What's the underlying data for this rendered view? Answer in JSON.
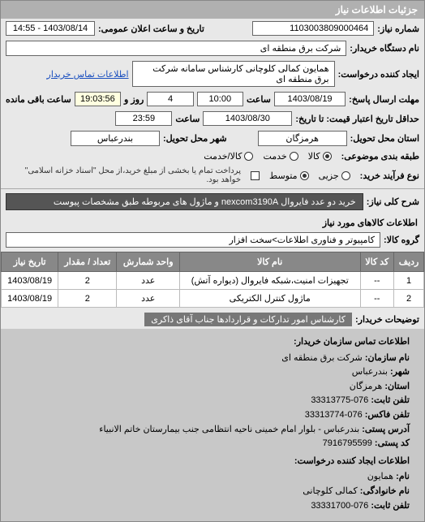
{
  "panel": {
    "title": "جزئیات اطلاعات نیاز"
  },
  "header": {
    "need_number_label": "شماره نیاز:",
    "need_number": "1103003809000464",
    "datetime_label": "تاریخ و ساعت اعلان عمومی:",
    "datetime": "1403/08/14 - 14:55",
    "buyer_org_label": "نام دستگاه خریدار:",
    "buyer_org": "شرکت برق منطقه ای",
    "request_creator_label": "ایجاد کننده درخواست:",
    "request_creator": "همایون کمالی کلوچانی کارشناس سامانه شرکت برق منطقه ای",
    "contact_link": "اطلاعات تماس خریدار"
  },
  "deadlines": {
    "send_deadline_label": "مهلت ارسال پاسخ:",
    "send_from_label": "تا تاریخ:",
    "send_date": "1403/08/19",
    "time_label": "ساعت",
    "send_time": "10:00",
    "days_label": "روز و",
    "days": "4",
    "remaining_time": "19:03:56",
    "remaining_label": "ساعت باقی مانده",
    "price_validity_label": "حداقل تاریخ اعتبار قیمت: تا تاریخ:",
    "price_date": "1403/08/30",
    "price_time": "23:59"
  },
  "location": {
    "province_label": "استان محل تحویل:",
    "province": "هرمزگان",
    "city_label": "شهر محل تحویل:",
    "city": "بندرعباس"
  },
  "subject_type": {
    "label": "طبقه بندی موضوعی:",
    "opt_goods": "کالا",
    "opt_service": "خدمت",
    "opt_goods_service": "کالا/خدمت"
  },
  "purchase_type": {
    "label": "نوع فرآیند خرید:",
    "opt_small": "جزیی",
    "opt_medium": "متوسط",
    "note": "پرداخت تمام یا بخشی از مبلغ خرید،از محل \"اسناد خزانه اسلامی\" خواهد بود.",
    "checkbox_label": ""
  },
  "description": {
    "label": "شرح کلی نیاز:",
    "text": "خرید دو عدد فایروال nexcom3190A و ماژول های مربوطه طبق مشخصات پیوست"
  },
  "goods_section": {
    "title": "اطلاعات کالاهای مورد نیاز",
    "group_label": "گروه کالا:",
    "group": "کامپیوتر و فناوری اطلاعات>سخت افزار"
  },
  "table": {
    "columns": [
      "ردیف",
      "کد کالا",
      "نام کالا",
      "واحد شمارش",
      "تعداد / مقدار",
      "تاریخ نیاز"
    ],
    "rows": [
      [
        "1",
        "--",
        "تجهیزات امنیت،شبکه فایروال (دیواره آتش)",
        "عدد",
        "2",
        "1403/08/19"
      ],
      [
        "2",
        "--",
        "ماژول کنترل الکتریکی",
        "عدد",
        "2",
        "1403/08/19"
      ]
    ]
  },
  "buyer_note": {
    "label": "توضیحات خریدار:",
    "text": "کارشناس امور تدارکات و قراردادها جناب آقای ذاکری"
  },
  "contact": {
    "title": "اطلاعات تماس سازمان خریدار:",
    "org_label": "نام سازمان:",
    "org": "شرکت برق منطقه ای",
    "city_label": "شهر:",
    "city": "بندرعباس",
    "province_label": "استان:",
    "province": "هرمزگان",
    "phone_label": "تلفن ثابت:",
    "phone": "076-33313775",
    "fax_label": "تلفن فاکس:",
    "fax": "076-33313774",
    "address_label": "آدرس پستی:",
    "address": "بندرعباس - بلوار امام خمینی ناحیه انتظامی جنب بیمارستان خاتم الانبیاء",
    "postal_label": "کد پستی:",
    "postal": "7916795599",
    "creator_title": "اطلاعات ایجاد کننده درخواست:",
    "name_label": "نام:",
    "name": "همایون",
    "lastname_label": "نام خانوادگی:",
    "lastname": "کمالی کلوچانی",
    "creator_phone_label": "تلفن ثابت:",
    "creator_phone": "076-33331700"
  }
}
